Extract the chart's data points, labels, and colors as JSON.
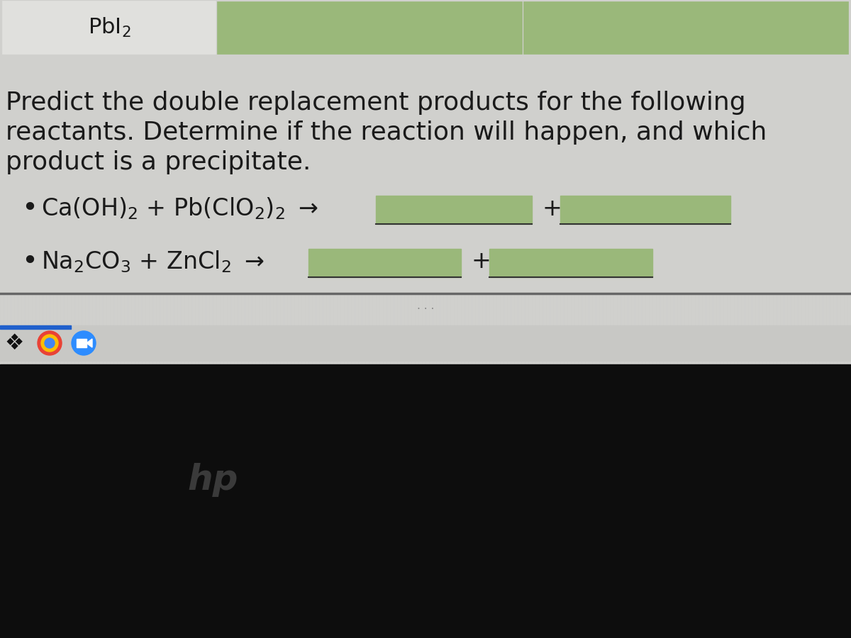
{
  "bg_color": "#d0d0cd",
  "table_bg": "#d0d0cd",
  "col1_bg": "#e0e0dd",
  "green_cell": "#9ab87a",
  "cell_border_color": "#888888",
  "title_text": "PbI$_2$",
  "instruction_line1": "Predict the double replacement products for the following",
  "instruction_line2": "reactants. Determine if the reaction will happen, and which",
  "instruction_line3": "product is a precipitate.",
  "eq1_text": "Ca(OH)$_2$ + Pb(ClO$_2$)$_2$ $\\rightarrow$",
  "eq2_text": "Na$_2$CO$_3$ + ZnCl$_2$ $\\rightarrow$",
  "text_color": "#1a1a1a",
  "font_size_instruction": 26,
  "font_size_eq": 24,
  "font_size_title": 22,
  "answer_box_color": "#9ab87a",
  "underline_color": "#333333",
  "separator_color": "#555555",
  "dots_color": "#888888",
  "taskbar_bg": "#111111",
  "taskbar_top_bg": "#ccccca",
  "taskbar_strip_color": "#1e1e1e",
  "blue_bar_color": "#2060cc",
  "dropbox_icon_color": "#1e1e1e",
  "chrome_outer": "#ea4335",
  "zoom_icon_color": "#2d8cff",
  "hp_logo_color": "#444444"
}
